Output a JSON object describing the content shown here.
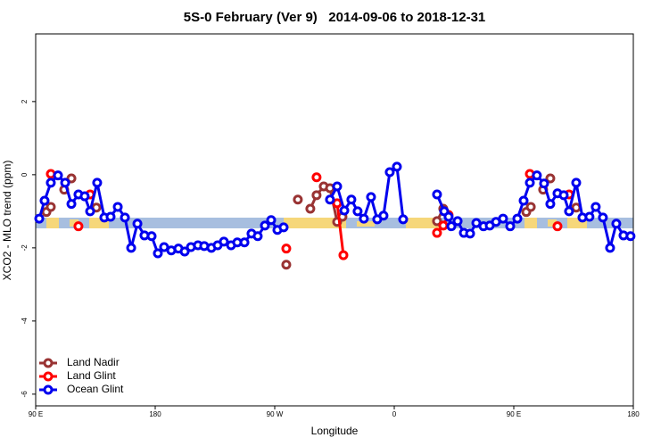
{
  "chart_data": {
    "type": "line",
    "title": "5S-0 February (Ver 9)   2014-09-06 to 2018-12-31",
    "x_label": "Longitude",
    "y_label": "XCO2 - MLO trend (ppm)",
    "xlim": [
      90,
      540
    ],
    "ylim": [
      -6.32,
      3.85
    ],
    "xticks": [
      {
        "value": 90,
        "label": "90 E"
      },
      180,
      {
        "value": 270,
        "label": "90 W"
      },
      {
        "value": 360,
        "label": "0"
      },
      {
        "value": 450,
        "label": "90 E"
      },
      {
        "value": 540,
        "label": "180"
      }
    ],
    "yticks": [
      -6,
      -4,
      -2,
      0,
      2
    ],
    "legend": "bottom-left",
    "series": [
      {
        "name": "Land Nadir",
        "color": "#993333",
        "x": [
          98.1,
          101.4,
          null,
          111.5,
          null,
          116.9,
          null,
          135.7,
          null,
          278.7,
          null,
          287.4,
          null,
          296.8,
          301.5,
          306.9,
          311.6,
          317.0,
          321.0,
          null,
          392.2,
          396.9,
          null,
          459.4,
          462.8,
          null,
          472.1,
          null,
          477.5,
          null,
          497.0
        ],
        "values": [
          -1.02,
          -0.88,
          null,
          -0.41,
          null,
          -0.1,
          null,
          -0.9,
          null,
          -2.46,
          null,
          -0.68,
          null,
          -0.93,
          -0.56,
          -0.32,
          -0.37,
          -1.29,
          -1.15,
          null,
          -1.27,
          -0.93,
          null,
          -1.02,
          -0.88,
          null,
          -0.41,
          null,
          -0.1,
          null,
          -0.9
        ]
      },
      {
        "name": "Land Glint",
        "color": "#ff0000",
        "x": [
          101.4,
          null,
          122.2,
          null,
          131.0,
          null,
          278.7,
          null,
          301.5,
          null,
          317.0,
          321.7,
          null,
          392.2,
          396.9,
          400.9,
          null,
          462.1,
          null,
          482.9,
          null,
          491.6
        ],
        "values": [
          0.02,
          null,
          -1.41,
          null,
          -0.54,
          null,
          -2.02,
          null,
          -0.07,
          null,
          -0.78,
          -2.2,
          null,
          -1.59,
          -1.39,
          -1.1,
          null,
          0.02,
          null,
          -1.41,
          null,
          -0.54
        ]
      },
      {
        "name": "Ocean Glint",
        "color": "#0000ee",
        "x": [
          92.7,
          96.7,
          101.4,
          106.8,
          112.2,
          116.9,
          122.2,
          126.9,
          131.0,
          136.3,
          141.7,
          146.4,
          151.8,
          157.2,
          161.9,
          166.6,
          171.9,
          177.3,
          182.0,
          186.7,
          192.1,
          197.5,
          202.2,
          206.9,
          212.2,
          216.9,
          222.3,
          227.0,
          231.7,
          237.1,
          241.8,
          247.2,
          252.5,
          257.2,
          262.6,
          267.3,
          272.0,
          276.7,
          null,
          311.6,
          317.0,
          322.4,
          327.7,
          332.4,
          337.1,
          342.5,
          347.2,
          351.9,
          356.6,
          362.0,
          366.7,
          null,
          392.2,
          397.6,
          400.9,
          403.0,
          407.7,
          412.4,
          417.1,
          421.8,
          427.2,
          431.9,
          436.6,
          441.9,
          447.3,
          452.7,
          457.4,
          462.1,
          467.4,
          472.8,
          477.5,
          482.9,
          487.6,
          491.6,
          497.0,
          501.7,
          507.0,
          511.7,
          517.1,
          522.5,
          527.2,
          532.6,
          537.9
        ],
        "values": [
          -1.2,
          -0.71,
          -0.22,
          -0.02,
          -0.22,
          -0.8,
          -0.54,
          -0.59,
          -1.0,
          -0.22,
          -1.17,
          -1.15,
          -0.88,
          -1.17,
          -2.0,
          -1.34,
          -1.66,
          -1.68,
          -2.15,
          -1.98,
          -2.07,
          -2.02,
          -2.1,
          -1.98,
          -1.93,
          -1.95,
          -2.0,
          -1.93,
          -1.83,
          -1.93,
          -1.85,
          -1.85,
          -1.61,
          -1.68,
          -1.39,
          -1.24,
          -1.51,
          -1.44,
          null,
          -0.68,
          -0.32,
          -0.98,
          -0.68,
          -1.0,
          -1.2,
          -0.61,
          -1.22,
          -1.12,
          0.07,
          0.22,
          -1.22,
          null,
          -0.54,
          -1.0,
          -1.15,
          -1.41,
          -1.27,
          -1.59,
          -1.61,
          -1.32,
          -1.41,
          -1.39,
          -1.29,
          -1.2,
          -1.41,
          -1.2,
          -0.71,
          -0.22,
          -0.02,
          -0.24,
          -0.8,
          -0.51,
          -0.56,
          -1.0,
          -0.22,
          -1.17,
          -1.15,
          -0.88,
          -1.17,
          -2.0,
          -1.34,
          -1.66,
          -1.68
        ]
      }
    ]
  }
}
